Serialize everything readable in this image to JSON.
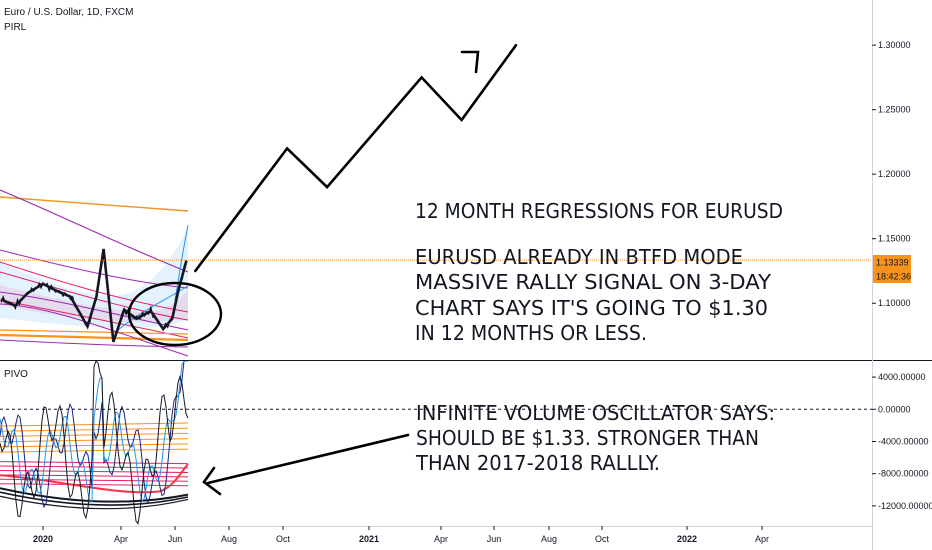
{
  "header": {
    "symbol": "Euro / U.S. Dollar, 1D, FXCM",
    "indicator_top": "PIRL",
    "indicator_bottom": "PIVO"
  },
  "price_badge": {
    "price": "1.13339",
    "countdown": "18:42:36",
    "color": "#f7931a"
  },
  "annotations": {
    "main_title": "12 MONTH REGRESSIONS FOR EURUSD",
    "main_lines": [
      "EURUSD ALREADY IN BTFD MODE",
      "MASSIVE RALLY SIGNAL ON 3-DAY",
      "CHART SAYS IT'S GOING TO $1.30",
      "IN 12 MONTHS OR LESS."
    ],
    "osc_lines": [
      "INFINITE VOLUME OSCILLATOR SAYS:",
      "SHOULD BE $1.33. STRONGER THAN",
      "THAN 2017-2018 RALLLY."
    ]
  },
  "colors": {
    "price_line": "#131722",
    "regression_orange": "#f7931a",
    "regression_purple": "#9c27b0",
    "regression_magenta": "#e91e63",
    "band_blue": "#2196f3",
    "oscillator_navy": "#1a237e"
  },
  "chart_data": [
    {
      "type": "line",
      "name_hint": "price",
      "y_ticks": [
        {
          "label": "1.30000",
          "value": 1.3
        },
        {
          "label": "1.25000",
          "value": 1.25
        },
        {
          "label": "1.20000",
          "value": 1.2
        },
        {
          "label": "1.15000",
          "value": 1.15
        },
        {
          "label": "1.10000",
          "value": 1.1
        }
      ],
      "ylim": [
        1.056,
        1.335
      ],
      "x_ticks": [
        {
          "label": "2020",
          "bold": true
        },
        {
          "label": "Apr",
          "bold": false
        },
        {
          "label": "Jun",
          "bold": false
        },
        {
          "label": "Aug",
          "bold": false
        },
        {
          "label": "Oct",
          "bold": false
        },
        {
          "label": "2021",
          "bold": true
        },
        {
          "label": "Apr",
          "bold": false
        },
        {
          "label": "Jun",
          "bold": false
        },
        {
          "label": "Aug",
          "bold": false
        },
        {
          "label": "Oct",
          "bold": false
        },
        {
          "label": "2022",
          "bold": true
        },
        {
          "label": "Apr",
          "bold": false
        }
      ],
      "last_price": 1.13339,
      "price_series": {
        "x": [
          "2019-11-15",
          "2019-12-01",
          "2019-12-15",
          "2020-01-01",
          "2020-01-15",
          "2020-02-01",
          "2020-02-20",
          "2020-03-01",
          "2020-03-09",
          "2020-03-20",
          "2020-04-01",
          "2020-04-15",
          "2020-05-01",
          "2020-05-15",
          "2020-05-25",
          "2020-06-01",
          "2020-06-10"
        ],
        "y": [
          1.103,
          1.098,
          1.108,
          1.115,
          1.11,
          1.105,
          1.082,
          1.105,
          1.142,
          1.07,
          1.095,
          1.088,
          1.094,
          1.08,
          1.088,
          1.11,
          1.133
        ]
      },
      "projection": {
        "x": [
          "2020-06-20",
          "2020-10-01",
          "2020-11-15",
          "2021-03-01",
          "2021-04-15",
          "2021-06-15"
        ],
        "y": [
          1.125,
          1.22,
          1.19,
          1.275,
          1.242,
          1.3
        ]
      }
    },
    {
      "type": "line",
      "name_hint": "oscillator",
      "y_ticks": [
        {
          "label": "4000.00000",
          "value": 4000
        },
        {
          "label": "0.00000",
          "value": 0
        },
        {
          "label": "-4000.00000",
          "value": -4000
        },
        {
          "label": "-8000.00000",
          "value": -8000
        },
        {
          "label": "-12000.00000",
          "value": -12000
        }
      ],
      "ylim": [
        -14500,
        6000
      ],
      "zero_line": true
    }
  ]
}
